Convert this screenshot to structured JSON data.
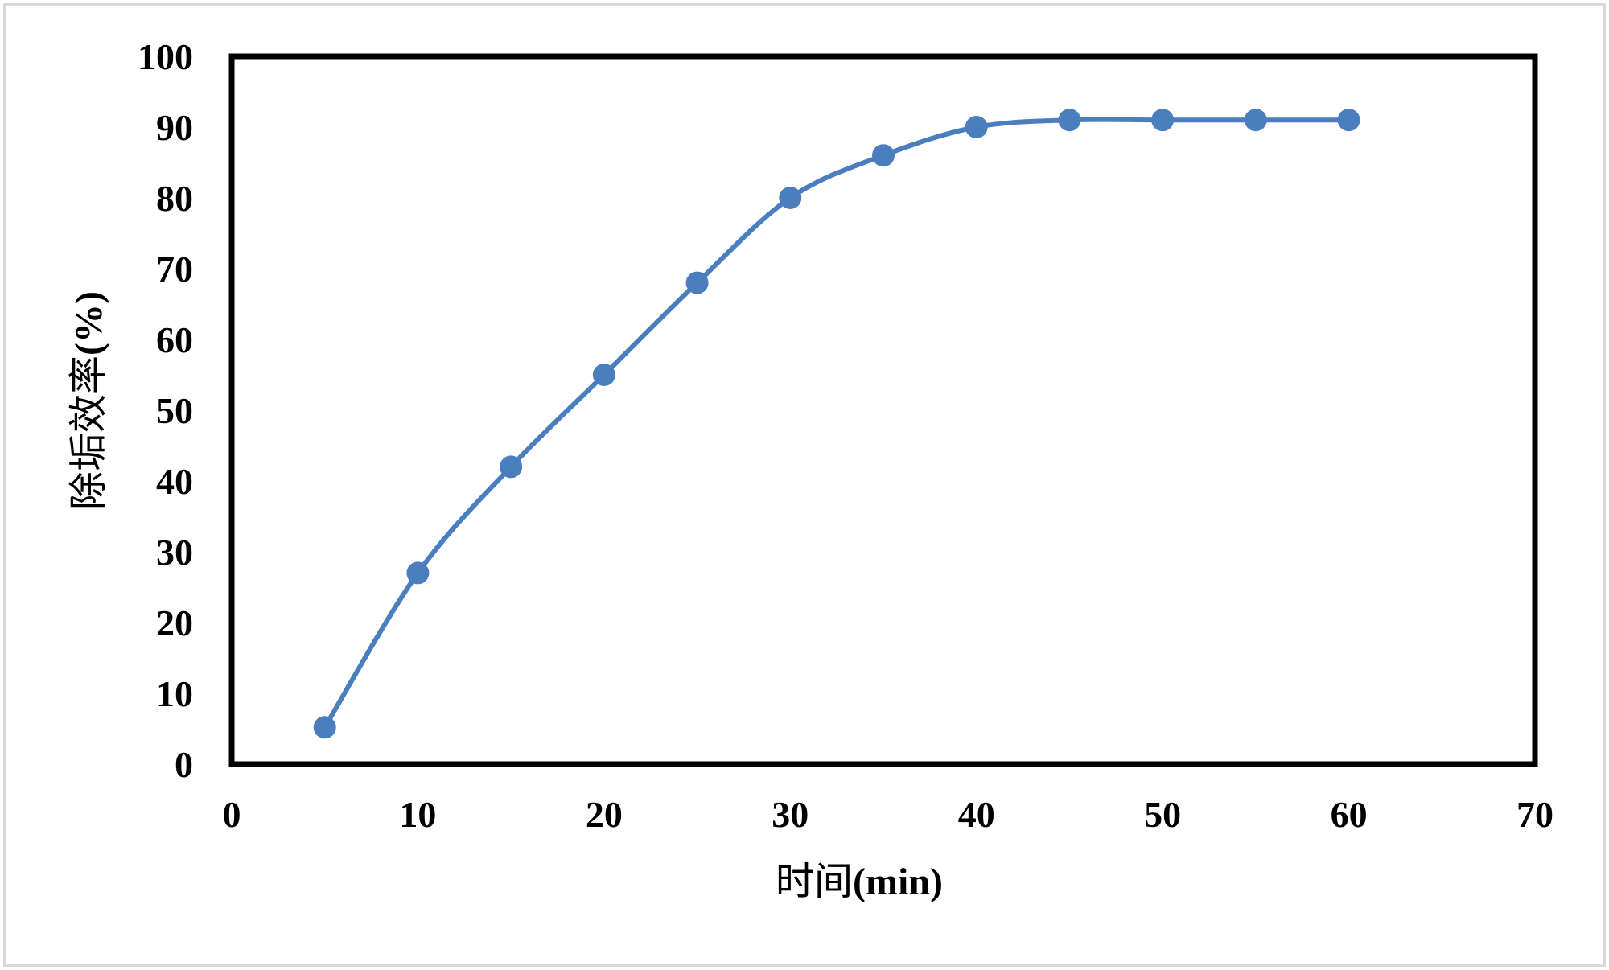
{
  "chart_data": {
    "type": "line",
    "title": "",
    "xlabel": "时间(min)",
    "xlabel_parts": {
      "text": "时间",
      "unit": "(min)"
    },
    "ylabel": "除垢效率(%)",
    "ylabel_parts": {
      "text": "除垢效率",
      "unit": "(%)"
    },
    "xlim": [
      0,
      70
    ],
    "ylim": [
      0,
      100
    ],
    "x_ticks": [
      0,
      10,
      20,
      30,
      40,
      50,
      60,
      70
    ],
    "y_ticks": [
      0,
      10,
      20,
      30,
      40,
      50,
      60,
      70,
      80,
      90,
      100
    ],
    "grid": false,
    "legend": "none",
    "smooth": true,
    "series": [
      {
        "color": "#4a7ebf",
        "x": [
          5,
          10,
          15,
          20,
          25,
          30,
          35,
          40,
          45,
          50,
          55,
          60
        ],
        "y": [
          5.2,
          27,
          42,
          55,
          68,
          80,
          86,
          90,
          91,
          91,
          91,
          91
        ]
      }
    ],
    "colors": {
      "series": "#4a7ebf",
      "axes": "#000000",
      "border": "#d9d9d9"
    }
  }
}
